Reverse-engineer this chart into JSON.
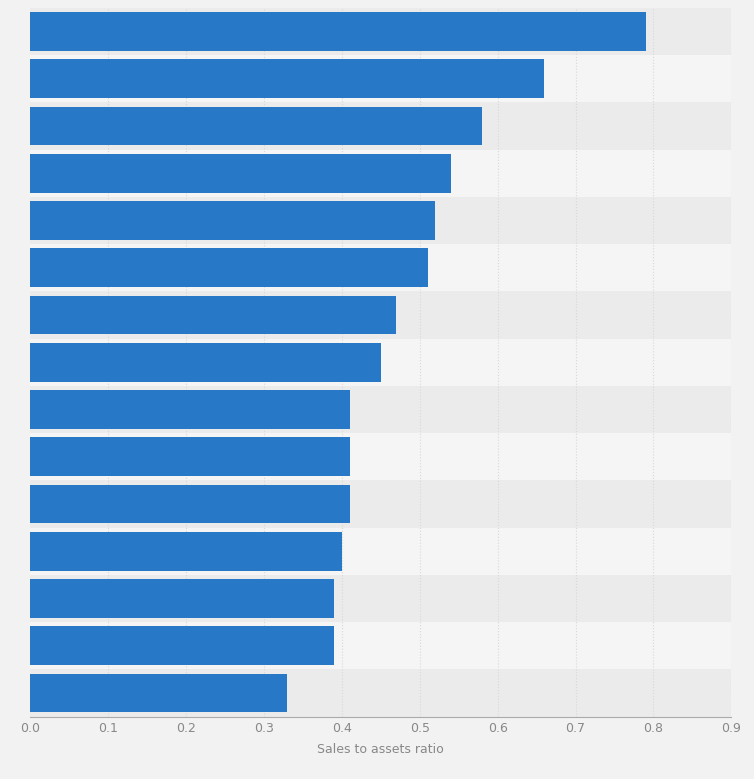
{
  "values": [
    0.79,
    0.66,
    0.58,
    0.54,
    0.52,
    0.51,
    0.47,
    0.45,
    0.41,
    0.41,
    0.41,
    0.4,
    0.39,
    0.39,
    0.33
  ],
  "bar_color": "#2878C8",
  "xlabel": "Sales to assets ratio",
  "xlim": [
    0,
    0.9
  ],
  "xticks": [
    0,
    0.1,
    0.2,
    0.3,
    0.4,
    0.5,
    0.6,
    0.7,
    0.8,
    0.9
  ],
  "background_color": "#f2f2f2",
  "plot_bg_color": "#f2f2f2",
  "grid_color": "#d8d8d8",
  "bar_height": 0.82,
  "xlabel_fontsize": 9,
  "tick_fontsize": 9,
  "tick_color": "#888888",
  "stripe_even": "#ebebeb",
  "stripe_odd": "#f5f5f5"
}
